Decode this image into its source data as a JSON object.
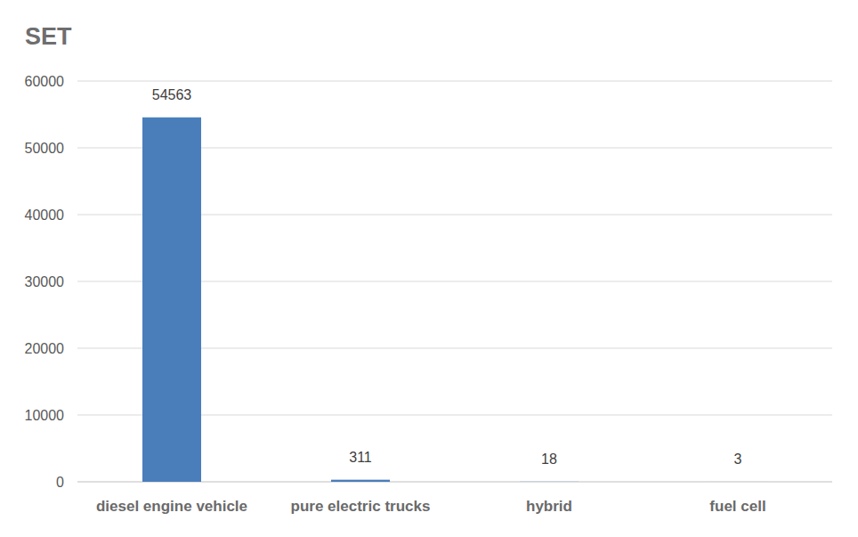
{
  "chart_data": {
    "type": "bar",
    "y_label": "SET",
    "categories": [
      "diesel engine vehicle",
      "pure electric trucks",
      "hybrid",
      "fuel cell"
    ],
    "values": [
      54563,
      311,
      18,
      3
    ],
    "color": "#4a7ebb",
    "ylim": [
      0,
      60000
    ],
    "yticks": [
      0,
      10000,
      20000,
      30000,
      40000,
      50000,
      60000
    ],
    "grid": true,
    "data_labels": true
  }
}
